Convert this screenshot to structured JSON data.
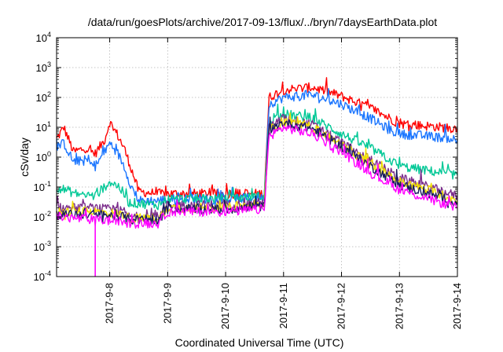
{
  "chart_data": {
    "type": "line",
    "title": "/data/run/goesPlots/archive/2017-09-13/flux/../bryn/7daysEarthData.plot",
    "xlabel": "Coordinated Universal Time (UTC)",
    "ylabel": "cSv/day",
    "y_scale": "log",
    "ylim": [
      0.0001,
      10000
    ],
    "xlim": [
      "2017-09-07 02:00",
      "2017-09-14 00:00"
    ],
    "grid": true,
    "legend": "none",
    "x_ticks": [
      "2017-9-8",
      "2017-9-9",
      "2017-9-10",
      "2017-9-11",
      "2017-9-12",
      "2017-9-13",
      "2017-9-14"
    ],
    "y_ticks": [
      {
        "value": 0.0001,
        "base": "10",
        "exp": "-4"
      },
      {
        "value": 0.001,
        "base": "10",
        "exp": "-3"
      },
      {
        "value": 0.01,
        "base": "10",
        "exp": "-2"
      },
      {
        "value": 0.1,
        "base": "10",
        "exp": "-1"
      },
      {
        "value": 1,
        "base": "10",
        "exp": "0"
      },
      {
        "value": 10,
        "base": "10",
        "exp": "1"
      },
      {
        "value": 100,
        "base": "10",
        "exp": "2"
      },
      {
        "value": 1000,
        "base": "10",
        "exp": "3"
      },
      {
        "value": 10000,
        "base": "10",
        "exp": "4"
      }
    ],
    "series": [
      {
        "color": "#ff0000",
        "points": [
          [
            "2017-09-07 02:00",
            4
          ],
          [
            "2017-09-07 05:00",
            10
          ],
          [
            "2017-09-07 09:00",
            1.5
          ],
          [
            "2017-09-07 14:00",
            2
          ],
          [
            "2017-09-07 18:00",
            1.3
          ],
          [
            "2017-09-07 22:00",
            4
          ],
          [
            "2017-09-08 00:00",
            15
          ],
          [
            "2017-09-08 03:00",
            6
          ],
          [
            "2017-09-08 06:00",
            2
          ],
          [
            "2017-09-08 09:00",
            0.4
          ],
          [
            "2017-09-08 12:00",
            0.07
          ],
          [
            "2017-09-08 20:00",
            0.06
          ],
          [
            "2017-09-09 00:00",
            0.06
          ],
          [
            "2017-09-10 00:00",
            0.06
          ],
          [
            "2017-09-10 16:00",
            0.06
          ],
          [
            "2017-09-10 18:00",
            100
          ],
          [
            "2017-09-11 00:00",
            180
          ],
          [
            "2017-09-11 12:00",
            220
          ],
          [
            "2017-09-12 00:00",
            110
          ],
          [
            "2017-09-12 12:00",
            45
          ],
          [
            "2017-09-12 20:00",
            20
          ],
          [
            "2017-09-13 00:00",
            13
          ],
          [
            "2017-09-13 12:00",
            11
          ],
          [
            "2017-09-14 00:00",
            9
          ]
        ]
      },
      {
        "color": "#1a75ff",
        "points": [
          [
            "2017-09-07 02:00",
            2
          ],
          [
            "2017-09-07 05:00",
            3
          ],
          [
            "2017-09-07 09:00",
            0.7
          ],
          [
            "2017-09-07 14:00",
            0.8
          ],
          [
            "2017-09-07 18:00",
            0.5
          ],
          [
            "2017-09-07 22:00",
            1.5
          ],
          [
            "2017-09-08 00:00",
            3
          ],
          [
            "2017-09-08 03:00",
            1.5
          ],
          [
            "2017-09-08 06:00",
            0.5
          ],
          [
            "2017-09-08 09:00",
            0.1
          ],
          [
            "2017-09-08 12:00",
            0.035
          ],
          [
            "2017-09-08 20:00",
            0.035
          ],
          [
            "2017-09-09 00:00",
            0.04
          ],
          [
            "2017-09-10 00:00",
            0.04
          ],
          [
            "2017-09-10 16:00",
            0.045
          ],
          [
            "2017-09-10 18:00",
            60
          ],
          [
            "2017-09-11 00:00",
            100
          ],
          [
            "2017-09-11 12:00",
            120
          ],
          [
            "2017-09-12 00:00",
            60
          ],
          [
            "2017-09-12 12:00",
            20
          ],
          [
            "2017-09-12 20:00",
            8
          ],
          [
            "2017-09-13 00:00",
            6
          ],
          [
            "2017-09-13 12:00",
            5
          ],
          [
            "2017-09-14 00:00",
            4
          ]
        ]
      },
      {
        "color": "#00c896",
        "points": [
          [
            "2017-09-07 02:00",
            0.1
          ],
          [
            "2017-09-07 10:00",
            0.06
          ],
          [
            "2017-09-07 18:00",
            0.05
          ],
          [
            "2017-09-08 00:00",
            0.15
          ],
          [
            "2017-09-08 04:00",
            0.1
          ],
          [
            "2017-09-08 08:00",
            0.03
          ],
          [
            "2017-09-08 20:00",
            0.025
          ],
          [
            "2017-09-09 00:00",
            0.04
          ],
          [
            "2017-09-10 00:00",
            0.04
          ],
          [
            "2017-09-10 16:00",
            0.05
          ],
          [
            "2017-09-10 18:00",
            15
          ],
          [
            "2017-09-11 00:00",
            28
          ],
          [
            "2017-09-11 12:00",
            20
          ],
          [
            "2017-09-12 00:00",
            6
          ],
          [
            "2017-09-12 12:00",
            2
          ],
          [
            "2017-09-12 20:00",
            0.8
          ],
          [
            "2017-09-13 00:00",
            0.5
          ],
          [
            "2017-09-13 12:00",
            0.35
          ],
          [
            "2017-09-14 00:00",
            0.25
          ]
        ]
      },
      {
        "color": "#7b2d8b",
        "points": [
          [
            "2017-09-07 02:00",
            0.02
          ],
          [
            "2017-09-07 18:00",
            0.02
          ],
          [
            "2017-09-08 06:00",
            0.015
          ],
          [
            "2017-09-08 08:00",
            0.01
          ],
          [
            "2017-09-08 20:00",
            0.01
          ],
          [
            "2017-09-09 00:00",
            0.025
          ],
          [
            "2017-09-10 00:00",
            0.025
          ],
          [
            "2017-09-10 16:00",
            0.03
          ],
          [
            "2017-09-10 18:00",
            10
          ],
          [
            "2017-09-11 00:00",
            20
          ],
          [
            "2017-09-11 12:00",
            12
          ],
          [
            "2017-09-12 00:00",
            3
          ],
          [
            "2017-09-12 12:00",
            0.8
          ],
          [
            "2017-09-13 00:00",
            0.2
          ],
          [
            "2017-09-13 12:00",
            0.1
          ],
          [
            "2017-09-14 00:00",
            0.05
          ]
        ]
      },
      {
        "color": "#f0e000",
        "points": [
          [
            "2017-09-07 02:00",
            0.015
          ],
          [
            "2017-09-07 18:00",
            0.015
          ],
          [
            "2017-09-08 06:00",
            0.012
          ],
          [
            "2017-09-08 08:00",
            0.009
          ],
          [
            "2017-09-08 20:00",
            0.009
          ],
          [
            "2017-09-09 00:00",
            0.02
          ],
          [
            "2017-09-10 00:00",
            0.02
          ],
          [
            "2017-09-10 16:00",
            0.025
          ],
          [
            "2017-09-10 18:00",
            8
          ],
          [
            "2017-09-11 00:00",
            16
          ],
          [
            "2017-09-11 12:00",
            10
          ],
          [
            "2017-09-12 00:00",
            2.5
          ],
          [
            "2017-09-12 12:00",
            0.6
          ],
          [
            "2017-09-13 00:00",
            0.15
          ],
          [
            "2017-09-13 12:00",
            0.08
          ],
          [
            "2017-09-14 00:00",
            0.035
          ]
        ]
      },
      {
        "color": "#1a1a60",
        "points": [
          [
            "2017-09-07 02:00",
            0.012
          ],
          [
            "2017-09-07 18:00",
            0.012
          ],
          [
            "2017-09-08 06:00",
            0.01
          ],
          [
            "2017-09-08 08:00",
            0.008
          ],
          [
            "2017-09-08 20:00",
            0.008
          ],
          [
            "2017-09-09 00:00",
            0.018
          ],
          [
            "2017-09-10 00:00",
            0.018
          ],
          [
            "2017-09-10 16:00",
            0.022
          ],
          [
            "2017-09-10 18:00",
            7
          ],
          [
            "2017-09-11 00:00",
            14
          ],
          [
            "2017-09-11 12:00",
            9
          ],
          [
            "2017-09-12 00:00",
            2.2
          ],
          [
            "2017-09-12 12:00",
            0.5
          ],
          [
            "2017-09-13 00:00",
            0.12
          ],
          [
            "2017-09-13 12:00",
            0.06
          ],
          [
            "2017-09-14 00:00",
            0.03
          ]
        ]
      },
      {
        "color": "#ff00ff",
        "points": [
          [
            "2017-09-07 02:00",
            0.01
          ],
          [
            "2017-09-07 18:00",
            0.008
          ],
          [
            "2017-09-08 06:00",
            0.007
          ],
          [
            "2017-09-08 08:00",
            0.006
          ],
          [
            "2017-09-08 20:00",
            0.006
          ],
          [
            "2017-09-09 00:00",
            0.015
          ],
          [
            "2017-09-10 00:00",
            0.015
          ],
          [
            "2017-09-10 16:00",
            0.018
          ],
          [
            "2017-09-10 18:00",
            5
          ],
          [
            "2017-09-11 00:00",
            10
          ],
          [
            "2017-09-11 12:00",
            6
          ],
          [
            "2017-09-12 00:00",
            1.5
          ],
          [
            "2017-09-12 12:00",
            0.3
          ],
          [
            "2017-09-13 00:00",
            0.08
          ],
          [
            "2017-09-13 12:00",
            0.04
          ],
          [
            "2017-09-14 00:00",
            0.02
          ]
        ]
      }
    ]
  }
}
